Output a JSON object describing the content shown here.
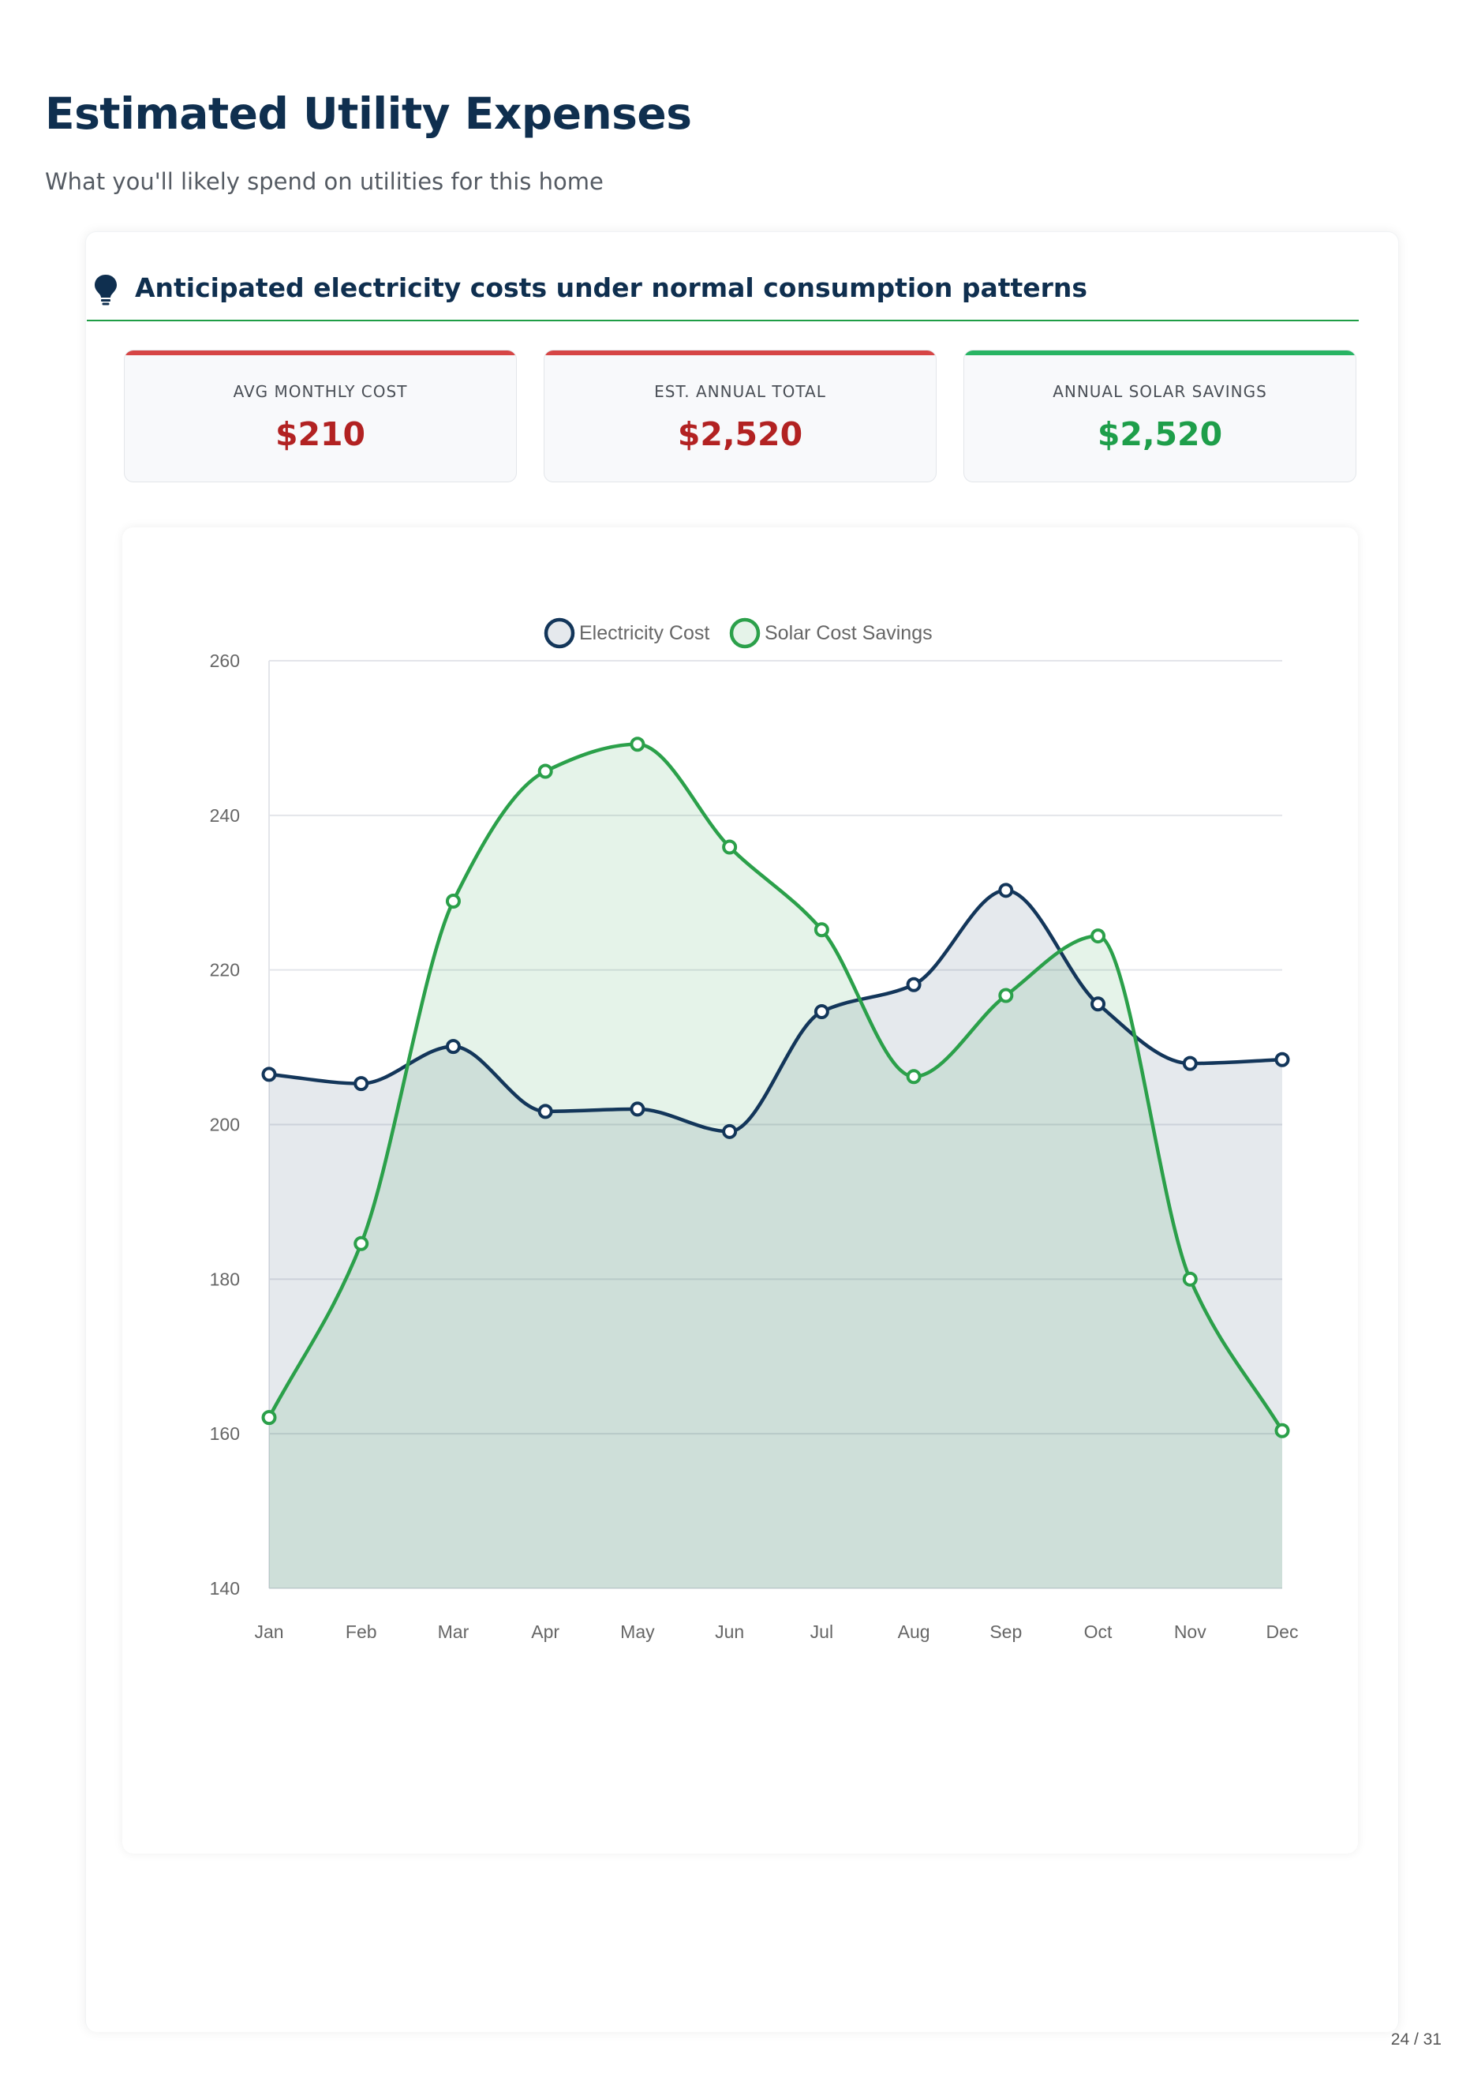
{
  "page": {
    "title": "Estimated Utility Expenses",
    "subtitle": "What you'll likely spend on utilities for this home",
    "page_number": "24 / 31"
  },
  "section": {
    "title": "Anticipated electricity costs under normal consumption patterns",
    "icon": "lightbulb-icon"
  },
  "stats": [
    {
      "label": "AVG MONTHLY COST",
      "value": "$210",
      "accent": "#d64545",
      "value_color": "#b22222"
    },
    {
      "label": "EST. ANNUAL TOTAL",
      "value": "$2,520",
      "accent": "#d64545",
      "value_color": "#b22222"
    },
    {
      "label": "ANNUAL SOLAR SAVINGS",
      "value": "$2,520",
      "accent": "#28b463",
      "value_color": "#1e9e4a"
    }
  ],
  "chart_data": {
    "type": "area",
    "categories": [
      "Jan",
      "Feb",
      "Mar",
      "Apr",
      "May",
      "Jun",
      "Jul",
      "Aug",
      "Sep",
      "Oct",
      "Nov",
      "Dec"
    ],
    "series": [
      {
        "name": "Electricity Cost",
        "color": "#13365a",
        "fill": "rgba(19,54,90,0.11)",
        "values": [
          206.5,
          205.3,
          210.1,
          201.7,
          202.0,
          199.1,
          214.6,
          218.1,
          230.3,
          215.6,
          207.9,
          208.4
        ]
      },
      {
        "name": "Solar Cost Savings",
        "color": "#2ba04a",
        "fill": "rgba(43,160,74,0.12)",
        "values": [
          162.1,
          184.6,
          228.9,
          245.7,
          249.2,
          235.9,
          225.2,
          206.2,
          216.7,
          224.4,
          180.0,
          160.4
        ]
      }
    ],
    "y_ticks": [
      "140",
      "160",
      "180",
      "200",
      "220",
      "240",
      "260"
    ],
    "ylim": [
      140,
      260
    ],
    "grid": true,
    "legend_position": "top"
  }
}
